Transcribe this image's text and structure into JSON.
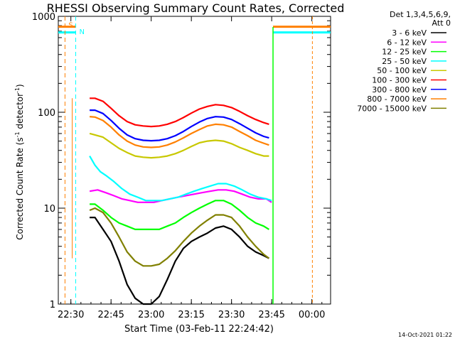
{
  "chart_data": {
    "type": "line",
    "title": "RHESSI Observing Summary Count Rates, Corrected",
    "xlabel": "Start Time (03-Feb-11 22:24:42)",
    "ylabel_main": "Corrected Count Rate (s",
    "ylabel_sup1": "-1",
    "ylabel_mid": " detector",
    "ylabel_sup2": "-1",
    "ylabel_end": ")",
    "y_scale": "log",
    "ylim": [
      1,
      1000
    ],
    "x_range_minutes": [
      -4.7,
      97
    ],
    "x_ticks": [
      {
        "label": "22:30",
        "minute": 0
      },
      {
        "label": "22:45",
        "minute": 15
      },
      {
        "label": "23:00",
        "minute": 30
      },
      {
        "label": "23:15",
        "minute": 45
      },
      {
        "label": "23:30",
        "minute": 60
      },
      {
        "label": "23:45",
        "minute": 75
      },
      {
        "label": "00:00",
        "minute": 90
      }
    ],
    "y_ticks": [
      {
        "label": "1",
        "value": 1
      },
      {
        "label": "10",
        "value": 10
      },
      {
        "label": "100",
        "value": 100
      },
      {
        "label": "1000",
        "value": 1000
      }
    ],
    "legend_header": [
      "Det 1,3,4,5,6,9,",
      "Att 0"
    ],
    "legend_position": "right",
    "series": [
      {
        "name": "3 - 6 keV",
        "color": "#000000",
        "points": [
          [
            7,
            8
          ],
          [
            9,
            8
          ],
          [
            12,
            6
          ],
          [
            15,
            4.5
          ],
          [
            18,
            2.8
          ],
          [
            21,
            1.6
          ],
          [
            24,
            1.15
          ],
          [
            27,
            1
          ],
          [
            30,
            1
          ],
          [
            33,
            1.2
          ],
          [
            36,
            1.8
          ],
          [
            39,
            2.8
          ],
          [
            42,
            3.8
          ],
          [
            45,
            4.5
          ],
          [
            48,
            5
          ],
          [
            51,
            5.5
          ],
          [
            54,
            6.2
          ],
          [
            57,
            6.5
          ],
          [
            60,
            6
          ],
          [
            63,
            5
          ],
          [
            66,
            4
          ],
          [
            69,
            3.5
          ],
          [
            72,
            3.2
          ],
          [
            74,
            3
          ]
        ]
      },
      {
        "name": "6 - 12 keV",
        "color": "#ff00ff",
        "points": [
          [
            7,
            15
          ],
          [
            10,
            15.5
          ],
          [
            13,
            14.5
          ],
          [
            16,
            13.5
          ],
          [
            19,
            12.5
          ],
          [
            22,
            12
          ],
          [
            25,
            11.5
          ],
          [
            28,
            11.5
          ],
          [
            31,
            11.5
          ],
          [
            34,
            12
          ],
          [
            37,
            12.5
          ],
          [
            40,
            13
          ],
          [
            43,
            13.5
          ],
          [
            46,
            14
          ],
          [
            49,
            14.5
          ],
          [
            52,
            15
          ],
          [
            55,
            15.5
          ],
          [
            58,
            15.5
          ],
          [
            61,
            15
          ],
          [
            64,
            14
          ],
          [
            67,
            13
          ],
          [
            70,
            12.5
          ],
          [
            73,
            12.5
          ],
          [
            75,
            11.5
          ]
        ]
      },
      {
        "name": "12 - 25 keV",
        "color": "#00ff00",
        "points": [
          [
            7,
            11
          ],
          [
            9,
            11
          ],
          [
            12,
            9.5
          ],
          [
            15,
            8
          ],
          [
            18,
            7
          ],
          [
            21,
            6.5
          ],
          [
            24,
            6
          ],
          [
            27,
            6
          ],
          [
            30,
            6
          ],
          [
            33,
            6
          ],
          [
            36,
            6.5
          ],
          [
            39,
            7
          ],
          [
            42,
            8
          ],
          [
            45,
            9
          ],
          [
            48,
            10
          ],
          [
            51,
            11
          ],
          [
            54,
            12
          ],
          [
            57,
            12
          ],
          [
            60,
            11
          ],
          [
            63,
            9.5
          ],
          [
            66,
            8
          ],
          [
            69,
            7
          ],
          [
            72,
            6.5
          ],
          [
            74,
            6
          ]
        ]
      },
      {
        "name": "25 - 50 keV",
        "color": "#00ffff",
        "points": [
          [
            7,
            35
          ],
          [
            9,
            28
          ],
          [
            11,
            24
          ],
          [
            13,
            22
          ],
          [
            16,
            19
          ],
          [
            19,
            16
          ],
          [
            22,
            14
          ],
          [
            25,
            13
          ],
          [
            28,
            12
          ],
          [
            31,
            12
          ],
          [
            34,
            12
          ],
          [
            37,
            12.5
          ],
          [
            40,
            13
          ],
          [
            43,
            14
          ],
          [
            46,
            15
          ],
          [
            49,
            16
          ],
          [
            52,
            17
          ],
          [
            55,
            18
          ],
          [
            58,
            18
          ],
          [
            61,
            17
          ],
          [
            64,
            15.5
          ],
          [
            67,
            14
          ],
          [
            70,
            13
          ],
          [
            73,
            12.5
          ],
          [
            75,
            12
          ]
        ]
      },
      {
        "name": "50 - 100 keV",
        "color": "#c8c800",
        "points": [
          [
            7,
            60
          ],
          [
            9,
            58
          ],
          [
            12,
            55
          ],
          [
            15,
            48
          ],
          [
            18,
            42
          ],
          [
            21,
            38
          ],
          [
            24,
            35
          ],
          [
            27,
            34
          ],
          [
            30,
            33.5
          ],
          [
            33,
            34
          ],
          [
            36,
            35
          ],
          [
            39,
            37
          ],
          [
            42,
            40
          ],
          [
            45,
            44
          ],
          [
            48,
            48
          ],
          [
            51,
            50
          ],
          [
            54,
            51
          ],
          [
            57,
            50
          ],
          [
            60,
            47
          ],
          [
            63,
            43
          ],
          [
            66,
            40
          ],
          [
            69,
            37
          ],
          [
            72,
            35
          ],
          [
            74,
            35
          ]
        ]
      },
      {
        "name": "100 - 300 keV",
        "color": "#ff0000",
        "points": [
          [
            7,
            140
          ],
          [
            9,
            140
          ],
          [
            12,
            130
          ],
          [
            15,
            110
          ],
          [
            18,
            92
          ],
          [
            21,
            80
          ],
          [
            24,
            74
          ],
          [
            27,
            72
          ],
          [
            30,
            71
          ],
          [
            33,
            72
          ],
          [
            36,
            75
          ],
          [
            39,
            80
          ],
          [
            42,
            88
          ],
          [
            45,
            98
          ],
          [
            48,
            108
          ],
          [
            51,
            115
          ],
          [
            54,
            120
          ],
          [
            57,
            118
          ],
          [
            60,
            112
          ],
          [
            63,
            102
          ],
          [
            66,
            92
          ],
          [
            69,
            84
          ],
          [
            72,
            78
          ],
          [
            74,
            75
          ]
        ]
      },
      {
        "name": "300 - 800 keV",
        "color": "#0000ff",
        "points": [
          [
            7,
            105
          ],
          [
            9,
            105
          ],
          [
            12,
            97
          ],
          [
            15,
            82
          ],
          [
            18,
            68
          ],
          [
            21,
            58
          ],
          [
            24,
            53
          ],
          [
            27,
            51
          ],
          [
            30,
            50.5
          ],
          [
            33,
            51
          ],
          [
            36,
            53
          ],
          [
            39,
            57
          ],
          [
            42,
            63
          ],
          [
            45,
            71
          ],
          [
            48,
            79
          ],
          [
            51,
            86
          ],
          [
            54,
            90
          ],
          [
            57,
            89
          ],
          [
            60,
            84
          ],
          [
            63,
            76
          ],
          [
            66,
            68
          ],
          [
            69,
            61
          ],
          [
            72,
            56
          ],
          [
            74,
            54
          ]
        ]
      },
      {
        "name": "800 - 7000 keV",
        "color": "#ff8000",
        "points": [
          [
            7,
            90
          ],
          [
            9,
            89
          ],
          [
            12,
            82
          ],
          [
            15,
            70
          ],
          [
            18,
            58
          ],
          [
            21,
            50
          ],
          [
            24,
            45.5
          ],
          [
            27,
            43.5
          ],
          [
            30,
            43
          ],
          [
            33,
            43.5
          ],
          [
            36,
            45.5
          ],
          [
            39,
            49
          ],
          [
            42,
            54
          ],
          [
            45,
            60
          ],
          [
            48,
            66
          ],
          [
            51,
            72
          ],
          [
            54,
            75
          ],
          [
            57,
            74
          ],
          [
            60,
            70
          ],
          [
            63,
            63
          ],
          [
            66,
            57
          ],
          [
            69,
            51
          ],
          [
            72,
            47.5
          ],
          [
            74,
            45.5
          ]
        ]
      },
      {
        "name": "7000 - 15000 keV",
        "color": "#808000",
        "points": [
          [
            7,
            9.5
          ],
          [
            9,
            10
          ],
          [
            12,
            9
          ],
          [
            15,
            7
          ],
          [
            18,
            5
          ],
          [
            21,
            3.5
          ],
          [
            24,
            2.8
          ],
          [
            27,
            2.5
          ],
          [
            30,
            2.5
          ],
          [
            33,
            2.6
          ],
          [
            36,
            3
          ],
          [
            39,
            3.6
          ],
          [
            42,
            4.5
          ],
          [
            45,
            5.5
          ],
          [
            48,
            6.5
          ],
          [
            51,
            7.5
          ],
          [
            54,
            8.5
          ],
          [
            57,
            8.5
          ],
          [
            60,
            8
          ],
          [
            63,
            6.5
          ],
          [
            66,
            5
          ],
          [
            69,
            4
          ],
          [
            72,
            3.3
          ],
          [
            74,
            3
          ]
        ]
      }
    ],
    "markers": [
      {
        "label": "S",
        "minute": -2.2,
        "color": "#ff8000"
      },
      {
        "label": "N",
        "minute": 1.8,
        "color": "#00ffff"
      }
    ],
    "flag_levels": [
      {
        "value": 780,
        "color": "#ff8000"
      },
      {
        "value": 680,
        "color": "#00ffff"
      }
    ]
  },
  "footer": {
    "timestamp": "14-Oct-2021 01:22"
  }
}
